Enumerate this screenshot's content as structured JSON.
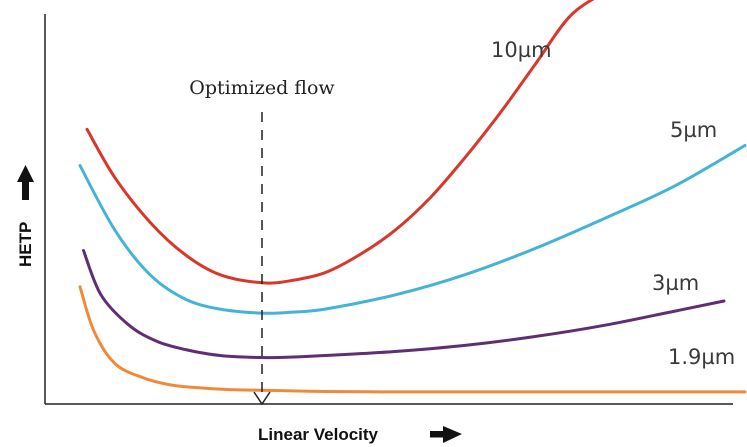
{
  "chart_data": {
    "type": "line",
    "title": "",
    "xlabel": "Linear Velocity",
    "ylabel": "HETP",
    "xlim": [
      0,
      100
    ],
    "ylim": [
      0,
      100
    ],
    "grid": false,
    "legend": "none (series labelled inline at curve ends)",
    "x_arrow_icon": "right-arrow-icon",
    "y_arrow_icon": "up-arrow-icon",
    "annotation": {
      "text": "Optimized flow",
      "x": 31
    },
    "series": [
      {
        "name": "10µm",
        "color": "#d8372a",
        "x": [
          6,
          10,
          15,
          20,
          25,
          31,
          35,
          40,
          45,
          50,
          55,
          60,
          65,
          70,
          75,
          80
        ],
        "y": [
          68,
          56,
          45,
          37,
          32,
          30,
          30.5,
          32.5,
          37,
          43,
          51,
          61,
          72,
          84,
          96,
          102
        ]
      },
      {
        "name": "5µm",
        "color": "#45b3d6",
        "x": [
          5,
          10,
          15,
          20,
          25,
          31,
          35,
          40,
          50,
          60,
          70,
          80,
          90,
          100
        ],
        "y": [
          59,
          43,
          32,
          26,
          23.5,
          22.5,
          22.7,
          23.5,
          27,
          32,
          38.5,
          46,
          54,
          64
        ]
      },
      {
        "name": "3µm",
        "color": "#5e2f72",
        "x": [
          5.5,
          8,
          12,
          16,
          20,
          25,
          31,
          35,
          40,
          50,
          60,
          70,
          80,
          90,
          97
        ],
        "y": [
          38,
          27,
          19.5,
          15.5,
          13.5,
          12,
          11.5,
          11.6,
          12,
          13,
          14.5,
          16.7,
          19.5,
          23,
          25.5
        ]
      },
      {
        "name": "1.9µm",
        "color": "#ef8a3a",
        "x": [
          5,
          7,
          10,
          14,
          18,
          22,
          26,
          31,
          40,
          50,
          60,
          70,
          80,
          90,
          100
        ],
        "y": [
          29,
          18,
          10,
          6.5,
          4.7,
          4,
          3.6,
          3.4,
          3.1,
          3,
          3,
          3,
          3,
          3,
          3
        ]
      }
    ]
  }
}
